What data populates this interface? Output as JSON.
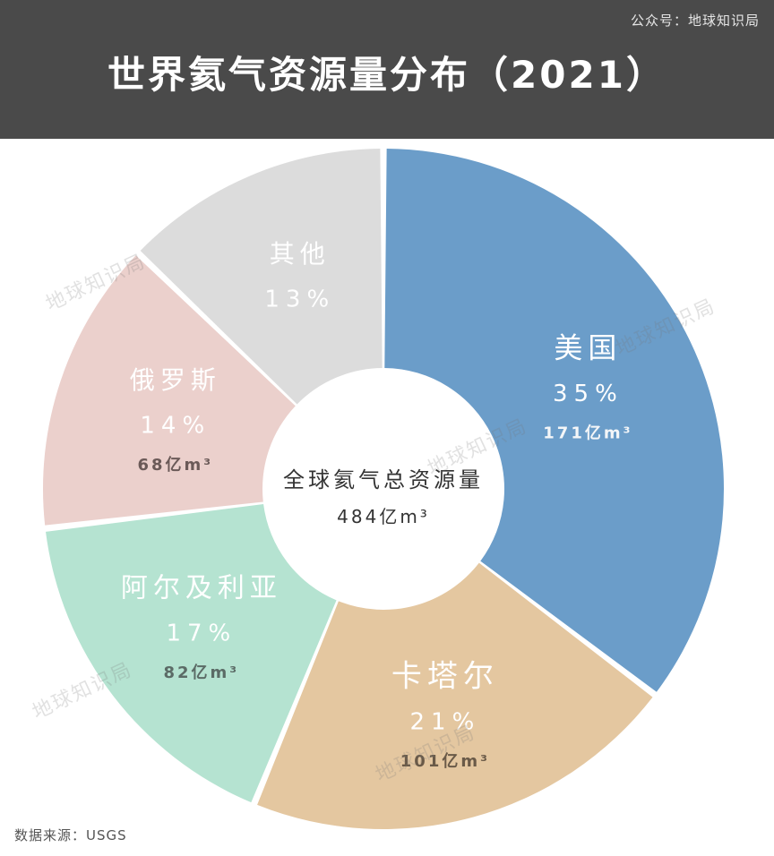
{
  "brand": "公众号：地球知识局",
  "title": "世界氦气资源量分布（2021）",
  "source": "数据来源：USGS",
  "watermark": "地球知识局",
  "chart_data": {
    "type": "pie",
    "center_label": "全球氦气总资源量",
    "center_value": "484亿m³",
    "slices": [
      {
        "name": "美国",
        "percent_label": "35%",
        "value": 171,
        "value_label": "171亿m³",
        "color": "#6b9dc9",
        "text_color": "#ffffff",
        "sub_color": "#f4f6f8"
      },
      {
        "name": "卡塔尔",
        "percent_label": "21%",
        "value": 101,
        "value_label": "101亿m³",
        "color": "#e4c7a0",
        "text_color": "#ffffff",
        "sub_color": "#6a5a48"
      },
      {
        "name": "阿尔及利亚",
        "percent_label": "17%",
        "value": 82,
        "value_label": "82亿m³",
        "color": "#b5e3d1",
        "text_color": "#ffffff",
        "sub_color": "#5b6b66"
      },
      {
        "name": "俄罗斯",
        "percent_label": "14%",
        "value": 68,
        "value_label": "68亿m³",
        "color": "#ebd0cc",
        "text_color": "#ffffff",
        "sub_color": "#6b5a58"
      },
      {
        "name": "其他",
        "percent_label": "13%",
        "value": 62,
        "value_label": "",
        "color": "#dcdcdc",
        "text_color": "#ffffff",
        "sub_color": "#777777"
      }
    ]
  }
}
